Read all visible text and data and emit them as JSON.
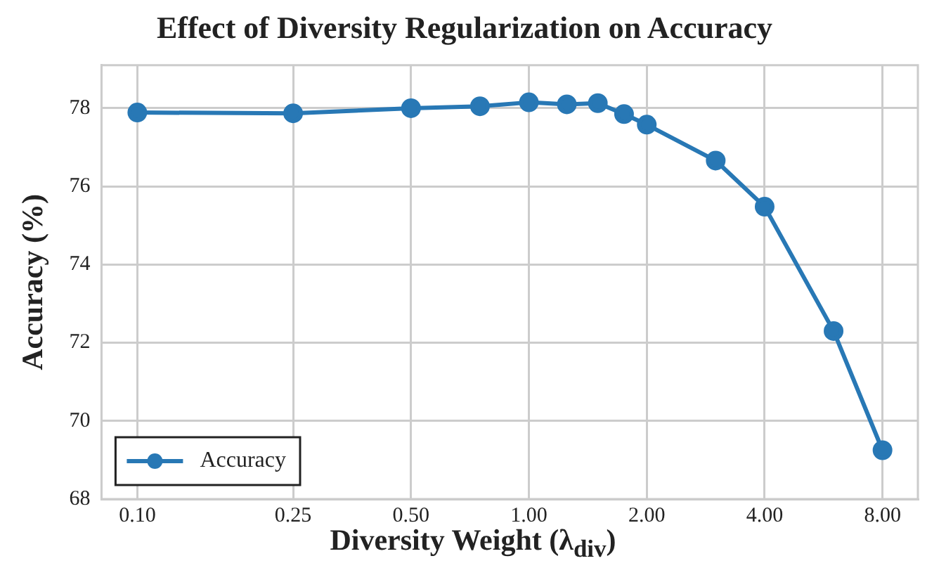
{
  "chart_data": {
    "type": "line",
    "title": "Effect of Diversity Regularization on Accuracy",
    "xlabel": "Diversity Weight (λ$_{div}$)",
    "ylabel": "Accuracy (%)",
    "x": [
      0.1,
      0.25,
      0.5,
      0.75,
      1.0,
      1.25,
      1.5,
      1.75,
      2.0,
      3.0,
      4.0,
      6.0,
      8.0
    ],
    "series": [
      {
        "name": "Accuracy",
        "color": "#2878b5",
        "values": [
          77.89,
          77.87,
          78.0,
          78.05,
          78.15,
          78.1,
          78.13,
          77.85,
          77.58,
          76.66,
          75.48,
          72.3,
          69.25
        ]
      }
    ],
    "log": "x",
    "xlim": [
      0.081,
      9.85
    ],
    "ylim": [
      68,
      79.1
    ],
    "xticks": [
      {
        "value": 0.1,
        "label": "0.10"
      },
      {
        "value": 0.25,
        "label": "0.25"
      },
      {
        "value": 0.5,
        "label": "0.50"
      },
      {
        "value": 1,
        "label": "1.00"
      },
      {
        "value": 2,
        "label": "2.00"
      },
      {
        "value": 4,
        "label": "4.00"
      },
      {
        "value": 8,
        "label": "8.00"
      }
    ],
    "yticks": [
      68,
      70,
      72,
      74,
      76,
      78
    ],
    "grid": true,
    "legend": "bottom left",
    "marker": "circle",
    "line_style": "solid"
  }
}
